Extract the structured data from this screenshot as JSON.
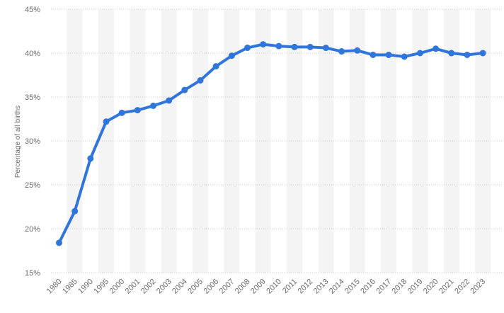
{
  "chart_data": {
    "type": "line",
    "title": "",
    "xlabel": "",
    "ylabel": "Percentage of all births",
    "ylim": [
      15,
      45
    ],
    "y_ticks": [
      15,
      20,
      25,
      30,
      35,
      40,
      45
    ],
    "y_tick_suffix": "%",
    "grid": true,
    "categories": [
      "1980",
      "1985",
      "1990",
      "1995",
      "2000",
      "2001",
      "2002",
      "2003",
      "2004",
      "2005",
      "2006",
      "2007",
      "2008",
      "2009",
      "2010",
      "2011",
      "2012",
      "2013",
      "2014",
      "2015",
      "2016",
      "2017",
      "2018",
      "2019",
      "2020",
      "2021",
      "2022",
      "2023"
    ],
    "series": [
      {
        "color": "#2f75dc",
        "values": [
          18.4,
          22.0,
          28.0,
          32.2,
          33.2,
          33.5,
          34.0,
          34.6,
          35.8,
          36.9,
          38.5,
          39.7,
          40.6,
          41.0,
          40.8,
          40.7,
          40.7,
          40.6,
          40.2,
          40.3,
          39.8,
          39.8,
          39.6,
          40.0,
          40.5,
          40.0,
          39.8,
          40.0
        ]
      }
    ],
    "colors": {
      "line": "#2f75dc",
      "band": "#f4f4f4",
      "grid": "#c9c9c9",
      "text": "#6b6b6b"
    }
  }
}
